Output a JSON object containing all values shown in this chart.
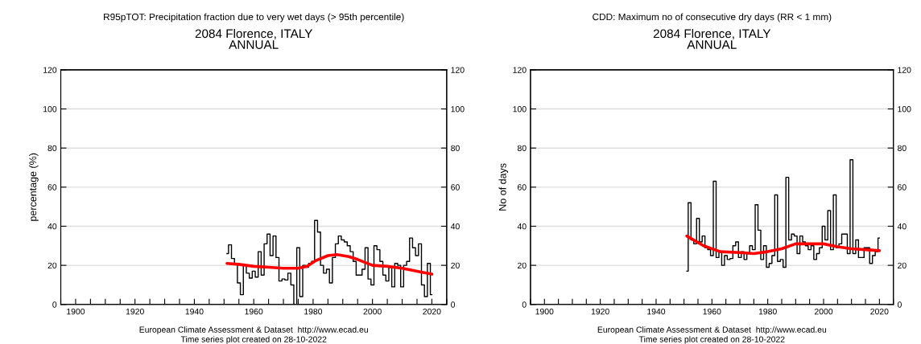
{
  "chart_data": [
    {
      "type": "step",
      "title": "R95pTOT: Precipitation fraction due to very wet days (> 95th percentile)",
      "subtitle": "2084 Florence, ITALY\nANNUAL",
      "ylabel": "percentage (%)",
      "annotations": [
        "European Climate Assessment & Dataset  http://www.ecad.eu",
        "Time series plot created on 28-10-2022"
      ],
      "xlim": [
        1895,
        2025
      ],
      "xticks": [
        {
          "value": 1895,
          "label": null
        },
        1900,
        {
          "value": 1905,
          "label": null
        },
        {
          "value": 1910,
          "label": null
        },
        {
          "value": 1915,
          "label": null
        },
        1920,
        {
          "value": 1925,
          "label": null
        },
        {
          "value": 1930,
          "label": null
        },
        {
          "value": 1935,
          "label": null
        },
        1940,
        {
          "value": 1945,
          "label": null
        },
        {
          "value": 1950,
          "label": null
        },
        {
          "value": 1955,
          "label": null
        },
        1960,
        {
          "value": 1965,
          "label": null
        },
        {
          "value": 1970,
          "label": null
        },
        {
          "value": 1975,
          "label": null
        },
        1980,
        {
          "value": 1985,
          "label": null
        },
        {
          "value": 1990,
          "label": null
        },
        {
          "value": 1995,
          "label": null
        },
        2000,
        {
          "value": 2005,
          "label": null
        },
        {
          "value": 2010,
          "label": null
        },
        {
          "value": 2015,
          "label": null
        },
        2020,
        {
          "value": 2025,
          "label": null
        }
      ],
      "ylim": [
        0,
        120
      ],
      "yticks": [
        0,
        20,
        40,
        60,
        80,
        100,
        120
      ],
      "y2lim": [
        0,
        120
      ],
      "y2ticks": [
        0,
        20,
        40,
        60,
        80,
        100,
        120
      ],
      "grid": "y",
      "series": [
        {
          "color": "#000000",
          "x": [
            1951,
            1952,
            1953,
            1954,
            1955,
            1956,
            1957,
            1958,
            1959,
            1960,
            1961,
            1962,
            1963,
            1964,
            1965,
            1966,
            1967,
            1968,
            1969,
            1970,
            1971,
            1972,
            1973,
            1974,
            1975,
            1976,
            1977,
            1978,
            1979,
            1980,
            1981,
            1982,
            1983,
            1984,
            1985,
            1986,
            1987,
            1988,
            1989,
            1990,
            1991,
            1992,
            1993,
            1994,
            1995,
            1996,
            1997,
            1998,
            1999,
            2000,
            2001,
            2002,
            2003,
            2004,
            2005,
            2006,
            2007,
            2008,
            2009,
            2010,
            2011,
            2012,
            2013,
            2014,
            2015,
            2016,
            2017,
            2018,
            2019,
            2020
          ],
          "values": [
            26,
            30.5,
            23.5,
            21,
            11,
            5,
            20,
            16,
            13.5,
            17,
            14,
            27,
            15,
            31,
            36,
            25,
            35,
            24,
            12,
            13,
            12.5,
            16,
            10,
            0,
            29,
            4,
            20,
            19,
            21,
            22,
            43,
            37,
            20,
            16,
            18,
            11,
            24,
            31,
            35,
            33,
            32,
            30,
            27,
            22,
            15,
            15,
            18,
            29,
            13,
            10,
            30,
            28,
            22,
            15,
            12,
            19,
            9,
            21,
            20,
            9,
            20,
            22,
            34,
            29,
            25,
            31,
            10,
            4,
            21,
            5
          ]
        },
        {
          "type": "line",
          "color": "#ff0000",
          "x": [
            1951,
            1955,
            1960,
            1965,
            1970,
            1975,
            1978,
            1981,
            1985,
            1988,
            1992,
            1995,
            2000,
            2005,
            2010,
            2015,
            2020
          ],
          "values": [
            21,
            20.5,
            19.5,
            19,
            18.5,
            18.5,
            19.5,
            22.5,
            25,
            25.5,
            24.5,
            23,
            20,
            19.5,
            18.5,
            17,
            15.5
          ]
        }
      ]
    },
    {
      "type": "step",
      "title": "CDD: Maximum no of consecutive dry days (RR < 1 mm)",
      "subtitle": "2084 Florence, ITALY\nANNUAL",
      "ylabel": "No of days",
      "annotations": [
        "European Climate Assessment & Dataset  http://www.ecad.eu",
        "Time series plot created on 28-10-2022"
      ],
      "xlim": [
        1895,
        2025
      ],
      "xticks": [
        {
          "value": 1895,
          "label": null
        },
        1900,
        {
          "value": 1905,
          "label": null
        },
        {
          "value": 1910,
          "label": null
        },
        {
          "value": 1915,
          "label": null
        },
        1920,
        {
          "value": 1925,
          "label": null
        },
        {
          "value": 1930,
          "label": null
        },
        {
          "value": 1935,
          "label": null
        },
        1940,
        {
          "value": 1945,
          "label": null
        },
        {
          "value": 1950,
          "label": null
        },
        {
          "value": 1955,
          "label": null
        },
        1960,
        {
          "value": 1965,
          "label": null
        },
        {
          "value": 1970,
          "label": null
        },
        {
          "value": 1975,
          "label": null
        },
        1980,
        {
          "value": 1985,
          "label": null
        },
        {
          "value": 1990,
          "label": null
        },
        {
          "value": 1995,
          "label": null
        },
        2000,
        {
          "value": 2005,
          "label": null
        },
        {
          "value": 2010,
          "label": null
        },
        {
          "value": 2015,
          "label": null
        },
        2020,
        {
          "value": 2025,
          "label": null
        }
      ],
      "ylim": [
        0,
        120
      ],
      "yticks": [
        0,
        20,
        40,
        60,
        80,
        100,
        120
      ],
      "y2lim": [
        0,
        120
      ],
      "y2ticks": [
        0,
        20,
        40,
        60,
        80,
        100,
        120
      ],
      "grid": "y",
      "series": [
        {
          "color": "#000000",
          "x": [
            1951,
            1952,
            1953,
            1954,
            1955,
            1956,
            1957,
            1958,
            1959,
            1960,
            1961,
            1962,
            1963,
            1964,
            1965,
            1966,
            1967,
            1968,
            1969,
            1970,
            1971,
            1972,
            1973,
            1974,
            1975,
            1976,
            1977,
            1978,
            1979,
            1980,
            1981,
            1982,
            1983,
            1984,
            1985,
            1986,
            1987,
            1988,
            1989,
            1990,
            1991,
            1992,
            1993,
            1994,
            1995,
            1996,
            1997,
            1998,
            1999,
            2000,
            2001,
            2002,
            2003,
            2004,
            2005,
            2006,
            2007,
            2008,
            2009,
            2010,
            2011,
            2012,
            2013,
            2014,
            2015,
            2016,
            2017,
            2018,
            2019,
            2020
          ],
          "values": [
            17,
            52,
            33,
            31,
            44,
            32,
            35,
            29,
            28,
            25,
            63,
            24,
            27,
            20,
            25,
            23,
            23.5,
            30,
            32,
            24,
            27,
            23,
            26,
            30,
            28,
            51,
            38,
            23,
            30,
            19,
            21,
            25,
            56,
            22,
            23,
            19,
            65,
            33,
            36,
            35,
            26,
            35,
            32,
            30,
            28,
            30,
            23,
            26,
            29,
            40,
            33,
            48,
            28,
            56,
            29,
            31,
            36,
            36,
            26,
            74,
            26,
            33,
            24,
            24,
            29,
            29,
            21,
            25,
            27,
            34
          ]
        },
        {
          "type": "line",
          "color": "#ff0000",
          "x": [
            1951,
            1957,
            1963,
            1970,
            1975,
            1980,
            1985,
            1990,
            1995,
            2000,
            2005,
            2010,
            2015,
            2020
          ],
          "values": [
            35,
            30,
            27,
            26.5,
            26,
            27,
            28.5,
            31,
            31,
            31,
            29.5,
            28.5,
            28,
            27.5
          ]
        }
      ]
    }
  ]
}
